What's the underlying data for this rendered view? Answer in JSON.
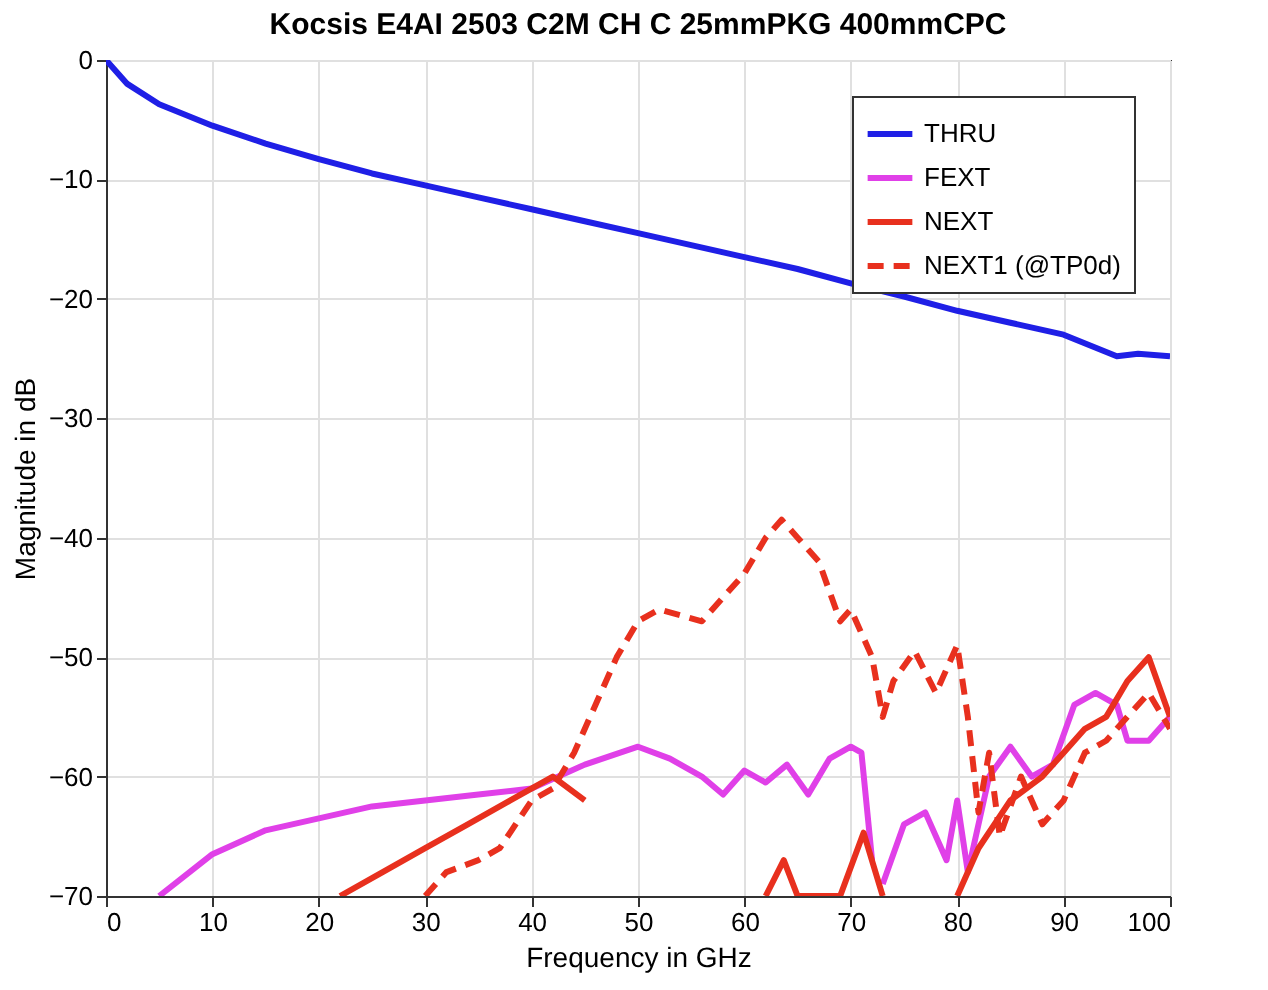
{
  "chart_data": {
    "type": "line",
    "title": "Kocsis E4AI 2503 C2M CH C 25mmPKG 400mmCPC",
    "xlabel": "Frequency in GHz",
    "ylabel": "Magnitude in dB",
    "xlim": [
      0,
      100
    ],
    "ylim": [
      -70,
      0
    ],
    "xticks": [
      0,
      10,
      20,
      30,
      40,
      50,
      60,
      70,
      80,
      90,
      100
    ],
    "yticks": [
      -70,
      -60,
      -50,
      -40,
      -30,
      -20,
      -10,
      0
    ],
    "grid": true,
    "legend": "top right",
    "series": [
      {
        "name": "THRU",
        "color": "#1f1fe6",
        "line_style": "solid",
        "x": [
          0,
          2,
          5,
          10,
          15,
          20,
          25,
          30,
          35,
          40,
          45,
          50,
          55,
          60,
          65,
          70,
          75,
          80,
          85,
          90,
          95,
          97,
          100
        ],
        "values": [
          0,
          -2,
          -3.7,
          -5.5,
          -7,
          -8.3,
          -9.5,
          -10.5,
          -11.5,
          -12.5,
          -13.5,
          -14.5,
          -15.5,
          -16.5,
          -17.5,
          -18.7,
          -19.8,
          -21,
          -22,
          -23,
          -24.8,
          -24.6,
          -24.8
        ]
      },
      {
        "name": "FEXT",
        "color": "#e040e8",
        "line_style": "solid",
        "x": [
          5,
          10,
          15,
          20,
          25,
          30,
          35,
          40,
          45,
          50,
          53,
          56,
          58,
          60,
          62,
          64,
          66,
          68,
          70,
          71,
          72,
          72.5,
          73,
          75,
          77,
          79,
          80,
          81,
          83,
          85,
          87,
          89,
          91,
          93,
          95,
          96,
          98,
          100
        ],
        "values": [
          -70,
          -66.5,
          -64.5,
          -63.5,
          -62.5,
          -62,
          -61.5,
          -61,
          -59,
          -57.5,
          -58.5,
          -60,
          -61.5,
          -59.5,
          -60.5,
          -59,
          -61.5,
          -58.5,
          -57.5,
          -58,
          -67,
          null,
          -69,
          -64,
          -63,
          -67,
          -62,
          -68,
          -60,
          -57.5,
          -60,
          -59,
          -54,
          -53,
          -54,
          -57,
          -57,
          -55
        ]
      },
      {
        "name": "NEXT",
        "color": "#e8301e",
        "line_style": "solid",
        "x": [
          22,
          26,
          30,
          34,
          38,
          42,
          45,
          47,
          62,
          63.7,
          65,
          69,
          71.2,
          73,
          78,
          80,
          82,
          85,
          88,
          90,
          92,
          94,
          96,
          98,
          100
        ],
        "values": [
          -70,
          -68,
          -66,
          -64,
          -62,
          -60,
          -62,
          null,
          -70,
          -67,
          -70,
          -70,
          -64.7,
          -70,
          null,
          -70,
          -66,
          -62,
          -60,
          -58,
          -56,
          -55,
          -52,
          -50,
          -55
        ]
      },
      {
        "name": "NEXT1 (@TP0d)",
        "color": "#e8301e",
        "line_style": "dashed",
        "x": [
          30,
          32,
          35,
          37,
          40,
          42,
          44,
          46,
          48,
          50,
          52,
          54,
          56,
          58,
          60,
          62,
          63.5,
          65,
          67,
          69,
          70,
          72,
          73,
          74,
          76,
          78,
          80,
          81,
          82,
          83,
          84,
          86,
          88,
          90,
          92,
          94,
          96,
          98,
          100
        ],
        "values": [
          -70,
          -68,
          -67,
          -66,
          -62,
          -61,
          -58,
          -54,
          -50,
          -47,
          -46,
          -46.5,
          -47,
          -45,
          -43,
          -40,
          -38.5,
          -40,
          -42,
          -47,
          -46,
          -50,
          -55,
          -52,
          -49.5,
          -53,
          -49,
          -55,
          -63,
          -58,
          -65,
          -60,
          -64,
          -62,
          -58,
          -57,
          -55,
          -53,
          -56
        ]
      }
    ]
  }
}
